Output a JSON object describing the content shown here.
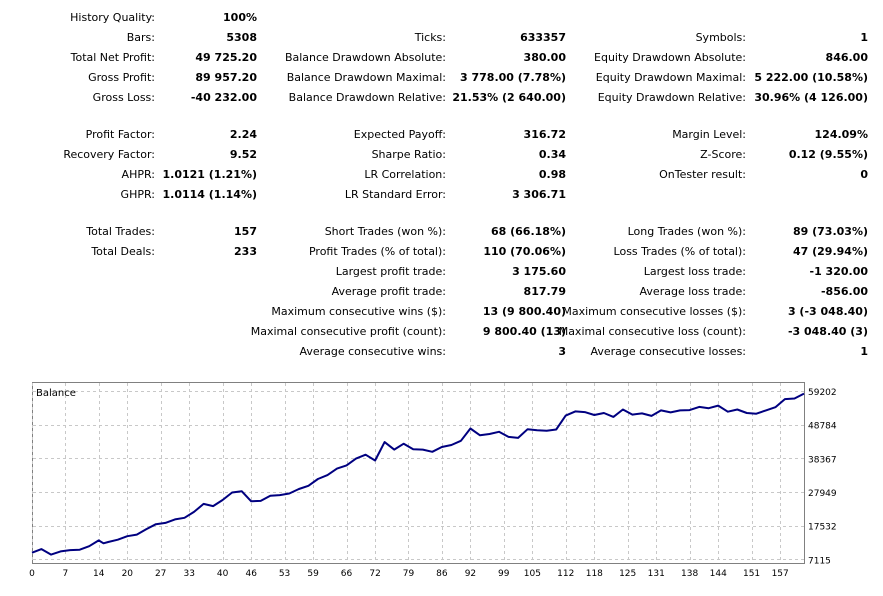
{
  "report": {
    "rows": [
      {
        "cells": [
          {
            "label": "History Quality:",
            "value": "100%"
          },
          {
            "label": "",
            "value": ""
          },
          {
            "label": "",
            "value": ""
          }
        ]
      },
      {
        "cells": [
          {
            "label": "Bars:",
            "value": "5308"
          },
          {
            "label": "Ticks:",
            "value": "633357"
          },
          {
            "label": "Symbols:",
            "value": "1"
          }
        ]
      },
      {
        "cells": [
          {
            "label": "Total Net Profit:",
            "value": "49 725.20"
          },
          {
            "label": "Balance Drawdown Absolute:",
            "value": "380.00"
          },
          {
            "label": "Equity Drawdown Absolute:",
            "value": "846.00"
          }
        ]
      },
      {
        "cells": [
          {
            "label": "Gross Profit:",
            "value": "89 957.20"
          },
          {
            "label": "Balance Drawdown Maximal:",
            "value": "3 778.00 (7.78%)"
          },
          {
            "label": "Equity Drawdown Maximal:",
            "value": "5 222.00 (10.58%)"
          }
        ]
      },
      {
        "cells": [
          {
            "label": "Gross Loss:",
            "value": "-40 232.00"
          },
          {
            "label": "Balance Drawdown Relative:",
            "value": "21.53% (2 640.00)"
          },
          {
            "label": "Equity Drawdown Relative:",
            "value": "30.96% (4 126.00)"
          }
        ]
      },
      {
        "cells": [
          {
            "label": "Profit Factor:",
            "value": "2.24"
          },
          {
            "label": "Expected Payoff:",
            "value": "316.72"
          },
          {
            "label": "Margin Level:",
            "value": "124.09%"
          }
        ]
      },
      {
        "cells": [
          {
            "label": "Recovery Factor:",
            "value": "9.52"
          },
          {
            "label": "Sharpe Ratio:",
            "value": "0.34"
          },
          {
            "label": "Z-Score:",
            "value": "0.12 (9.55%)"
          }
        ]
      },
      {
        "cells": [
          {
            "label": "AHPR:",
            "value": "1.0121 (1.21%)"
          },
          {
            "label": "LR Correlation:",
            "value": "0.98"
          },
          {
            "label": "OnTester result:",
            "value": "0"
          }
        ]
      },
      {
        "cells": [
          {
            "label": "GHPR:",
            "value": "1.0114 (1.14%)"
          },
          {
            "label": "LR Standard Error:",
            "value": "3 306.71"
          },
          {
            "label": "",
            "value": ""
          }
        ]
      },
      {
        "cells": [
          {
            "label": "Total Trades:",
            "value": "157"
          },
          {
            "label": "Short Trades (won %):",
            "value": "68 (66.18%)"
          },
          {
            "label": "Long Trades (won %):",
            "value": "89 (73.03%)"
          }
        ]
      },
      {
        "cells": [
          {
            "label": "Total Deals:",
            "value": "233"
          },
          {
            "label": "Profit Trades (% of total):",
            "value": "110 (70.06%)"
          },
          {
            "label": "Loss Trades (% of total):",
            "value": "47 (29.94%)"
          }
        ]
      },
      {
        "cells": [
          {
            "label": "",
            "value": ""
          },
          {
            "label": "Largest profit trade:",
            "value": "3 175.60"
          },
          {
            "label": "Largest loss trade:",
            "value": "-1 320.00"
          }
        ]
      },
      {
        "cells": [
          {
            "label": "",
            "value": ""
          },
          {
            "label": "Average profit trade:",
            "value": "817.79"
          },
          {
            "label": "Average loss trade:",
            "value": "-856.00"
          }
        ]
      },
      {
        "cells": [
          {
            "label": "",
            "value": ""
          },
          {
            "label": "Maximum consecutive wins ($):",
            "value": "13 (9 800.40)"
          },
          {
            "label": "Maximum consecutive losses ($):",
            "value": "3 (-3 048.40)"
          }
        ]
      },
      {
        "cells": [
          {
            "label": "",
            "value": ""
          },
          {
            "label": "Maximal consecutive profit (count):",
            "value": "9 800.40 (13)"
          },
          {
            "label": "Maximal consecutive loss (count):",
            "value": "-3 048.40 (3)"
          }
        ]
      },
      {
        "cells": [
          {
            "label": "",
            "value": ""
          },
          {
            "label": "Average consecutive wins:",
            "value": "3"
          },
          {
            "label": "Average consecutive losses:",
            "value": "1"
          }
        ]
      }
    ]
  },
  "chart_data": {
    "type": "line",
    "title": "Balance",
    "xlabel": "",
    "ylabel": "",
    "x_ticks": [
      0,
      7,
      14,
      20,
      27,
      33,
      40,
      46,
      53,
      59,
      66,
      72,
      79,
      86,
      92,
      99,
      105,
      112,
      118,
      125,
      131,
      138,
      144,
      151,
      157
    ],
    "y_ticks": [
      7115,
      17532,
      27949,
      38367,
      48784,
      59202
    ],
    "xlim": [
      0,
      162
    ],
    "ylim": [
      6000,
      62000
    ],
    "grid": true,
    "line_color": "#000080",
    "series": [
      {
        "name": "",
        "x": [
          0,
          2,
          4,
          6,
          8,
          10,
          12,
          14,
          15,
          16,
          18,
          20,
          22,
          24,
          26,
          28,
          30,
          32,
          34,
          36,
          38,
          40,
          42,
          44,
          46,
          48,
          50,
          52,
          54,
          56,
          58,
          60,
          62,
          64,
          66,
          68,
          70,
          72,
          74,
          76,
          78,
          80,
          82,
          84,
          86,
          88,
          90,
          92,
          94,
          96,
          98,
          100,
          102,
          104,
          106,
          108,
          110,
          112,
          114,
          116,
          118,
          120,
          122,
          124,
          126,
          128,
          130,
          132,
          134,
          136,
          138,
          140,
          142,
          144,
          146,
          148,
          150,
          152,
          154,
          156,
          158,
          160,
          162
        ],
        "values": [
          9200,
          10300,
          8600,
          9600,
          10000,
          10100,
          11200,
          13000,
          12100,
          12500,
          13200,
          14300,
          14800,
          16500,
          18000,
          18400,
          19500,
          20000,
          21800,
          24300,
          23600,
          25500,
          27800,
          28200,
          25100,
          25200,
          26800,
          27000,
          27500,
          28900,
          29900,
          32000,
          33200,
          35200,
          36200,
          38300,
          39500,
          37700,
          43400,
          41100,
          42900,
          41200,
          41100,
          40400,
          41900,
          42500,
          43800,
          47600,
          45500,
          45900,
          46600,
          45000,
          44700,
          47400,
          47100,
          46900,
          47300,
          51600,
          52900,
          52700,
          51800,
          52400,
          51200,
          53500,
          51900,
          52300,
          51500,
          53200,
          52600,
          53200,
          53300,
          54300,
          53900,
          54700,
          52800,
          53500,
          52400,
          52200,
          53200,
          54200,
          56700,
          56900,
          58400
        ]
      }
    ]
  }
}
